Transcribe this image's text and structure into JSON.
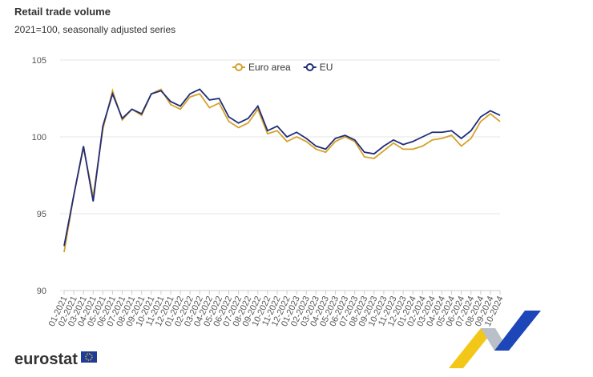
{
  "chart_data": {
    "type": "line",
    "title": "Retail trade volume",
    "subtitle": "2021=100, seasonally adjusted series",
    "x": [
      "01-2021",
      "02-2021",
      "03-2021",
      "04-2021",
      "05-2021",
      "06-2021",
      "07-2021",
      "08-2021",
      "09-2021",
      "10-2021",
      "11-2021",
      "12-2021",
      "01-2022",
      "02-2022",
      "03-2022",
      "04-2022",
      "05-2022",
      "06-2022",
      "07-2022",
      "08-2022",
      "09-2022",
      "10-2022",
      "11-2022",
      "12-2022",
      "01-2023",
      "02-2023",
      "03-2023",
      "04-2023",
      "05-2023",
      "06-2023",
      "07-2023",
      "08-2023",
      "09-2023",
      "10-2023",
      "11-2023",
      "12-2023",
      "01-2024",
      "02-2024",
      "03-2024",
      "04-2024",
      "05-2024",
      "06-2024",
      "07-2024",
      "08-2024",
      "09-2024",
      "10-2024"
    ],
    "series": [
      {
        "name": "Euro area",
        "color": "#d4a22a",
        "values": [
          92.5,
          96.2,
          99.3,
          96.1,
          100.5,
          103.0,
          101.1,
          101.8,
          101.4,
          102.8,
          103.1,
          102.1,
          101.8,
          102.6,
          102.8,
          101.9,
          102.2,
          101.0,
          100.6,
          100.9,
          101.8,
          100.2,
          100.4,
          99.7,
          100.0,
          99.7,
          99.2,
          99.0,
          99.7,
          100.0,
          99.7,
          98.7,
          98.6,
          99.1,
          99.6,
          99.2,
          99.2,
          99.4,
          99.8,
          99.9,
          100.1,
          99.4,
          99.9,
          101.0,
          101.5,
          101.0
        ]
      },
      {
        "name": "EU",
        "color": "#1f2d78",
        "values": [
          92.9,
          96.2,
          99.4,
          95.8,
          100.7,
          102.8,
          101.2,
          101.8,
          101.5,
          102.8,
          103.0,
          102.3,
          102.0,
          102.8,
          103.1,
          102.4,
          102.5,
          101.3,
          100.9,
          101.2,
          102.0,
          100.4,
          100.7,
          100.0,
          100.3,
          99.9,
          99.4,
          99.2,
          99.9,
          100.1,
          99.8,
          99.0,
          98.9,
          99.4,
          99.8,
          99.5,
          99.7,
          100.0,
          100.3,
          100.3,
          100.4,
          99.9,
          100.4,
          101.3,
          101.7,
          101.4
        ]
      }
    ],
    "ylim": [
      90,
      105
    ],
    "yticks": [
      90,
      95,
      100,
      105
    ],
    "grid": true
  },
  "branding": {
    "logo_text": "eurostat"
  }
}
